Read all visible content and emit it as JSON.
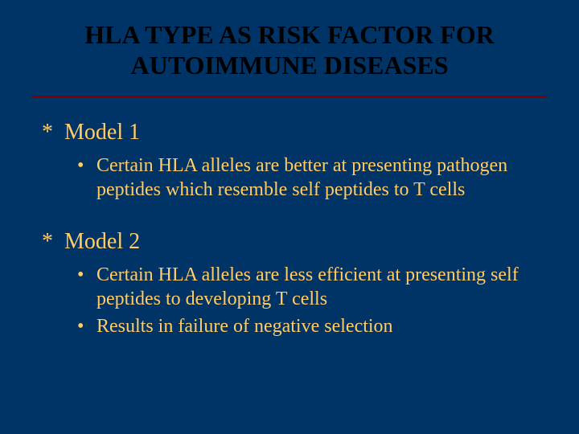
{
  "title_line1": "HLA TYPE AS RISK FACTOR FOR",
  "title_line2": "AUTOIMMUNE DISEASES",
  "colors": {
    "background": "#003366",
    "title": "#000000",
    "divider": "#800000",
    "text": "#ffcc66"
  },
  "fonts": {
    "title_size": 32,
    "model_size": 28,
    "bullet_size": 24,
    "family": "Times New Roman"
  },
  "sections": [
    {
      "label": "Model 1",
      "bullets": [
        "Certain HLA alleles are better at presenting pathogen peptides which resemble self peptides to T cells"
      ]
    },
    {
      "label": "Model 2",
      "bullets": [
        "Certain HLA alleles are less efficient at presenting self peptides to developing T cells",
        "Results in failure of negative selection"
      ]
    }
  ]
}
